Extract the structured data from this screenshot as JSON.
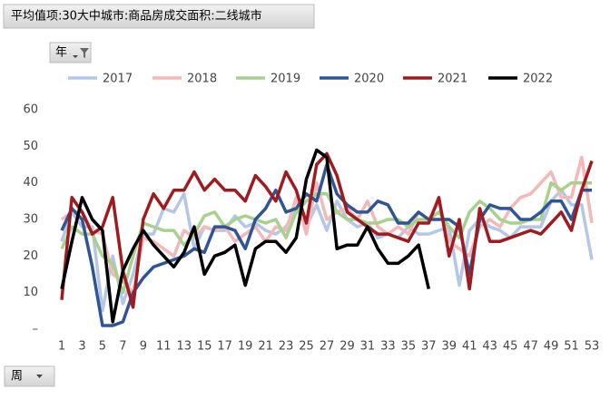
{
  "chart_data": {
    "type": "line",
    "title": "平均值项:30大中城市:商品房成交面积:二线城市",
    "filters": [
      "年",
      "周"
    ],
    "categories": [
      1,
      null,
      3,
      null,
      5,
      null,
      7,
      null,
      9,
      null,
      11,
      null,
      13,
      null,
      15,
      null,
      17,
      null,
      19,
      null,
      21,
      null,
      23,
      null,
      25,
      null,
      27,
      null,
      29,
      null,
      31,
      null,
      33,
      null,
      35,
      null,
      37,
      null,
      39,
      null,
      41,
      null,
      43,
      null,
      45,
      null,
      47,
      null,
      49,
      null,
      51,
      null,
      53
    ],
    "ylim": [
      0,
      60
    ],
    "yticks": [
      {
        "value": 0,
        "label": "–"
      },
      10,
      20,
      30,
      40,
      50,
      60
    ],
    "grid": false,
    "legend": "top",
    "series": [
      {
        "name": "2017",
        "color": "#b4c7e7",
        "values": [
          24,
          32,
          28,
          28,
          5,
          20,
          7,
          15,
          26,
          26,
          33,
          32,
          37,
          22,
          28,
          27,
          27,
          31,
          28,
          29,
          27,
          26,
          28,
          33,
          28,
          34,
          27,
          35,
          30,
          28,
          29,
          25,
          26,
          25,
          28,
          26,
          26,
          27,
          28,
          12,
          27,
          30,
          28,
          27,
          25,
          28,
          28,
          28,
          35,
          38,
          34,
          34,
          19
        ]
      },
      {
        "name": "2018",
        "color": "#f4b8b8",
        "values": [
          30,
          32,
          32,
          27,
          26,
          15,
          13,
          10,
          25,
          24,
          22,
          20,
          27,
          25,
          28,
          27,
          28,
          24,
          26,
          28,
          24,
          28,
          27,
          36,
          26,
          40,
          30,
          32,
          33,
          30,
          35,
          28,
          26,
          28,
          26,
          32,
          30,
          35,
          24,
          22,
          20,
          28,
          30,
          28,
          33,
          36,
          37,
          40,
          43,
          36,
          36,
          47,
          29
        ]
      },
      {
        "name": "2019",
        "color": "#a9d18e",
        "values": [
          22,
          28,
          26,
          26,
          20,
          18,
          10,
          20,
          29,
          28,
          27,
          27,
          23,
          26,
          31,
          32,
          28,
          30,
          31,
          30,
          29,
          30,
          25,
          32,
          35,
          37,
          37,
          32,
          30,
          30,
          29,
          29,
          30,
          30,
          28,
          30,
          30,
          32,
          28,
          25,
          32,
          35,
          33,
          30,
          29,
          29,
          30,
          30,
          40,
          38,
          40,
          40,
          40
        ]
      },
      {
        "name": "2020",
        "color": "#2f5597",
        "values": [
          27,
          33,
          30,
          17,
          1,
          1,
          2,
          10,
          14,
          17,
          18,
          19,
          20,
          22,
          21,
          28,
          28,
          27,
          22,
          30,
          33,
          38,
          32,
          33,
          37,
          35,
          45,
          37,
          34,
          32,
          32,
          35,
          34,
          29,
          29,
          32,
          30,
          30,
          30,
          28,
          15,
          30,
          34,
          33,
          33,
          30,
          30,
          32,
          35,
          35,
          30,
          38,
          38
        ]
      },
      {
        "name": "2021",
        "color": "#9e1b20",
        "values": [
          8,
          36,
          32,
          26,
          28,
          36,
          16,
          6,
          30,
          37,
          33,
          38,
          38,
          43,
          38,
          41,
          38,
          38,
          35,
          42,
          39,
          35,
          43,
          38,
          29,
          45,
          48,
          42,
          32,
          30,
          28,
          26,
          26,
          25,
          24,
          29,
          29,
          36,
          20,
          30,
          11,
          33,
          24,
          24,
          25,
          26,
          27,
          26,
          29,
          32,
          27,
          38,
          46
        ]
      },
      {
        "name": "2022",
        "color": "#000000",
        "values": [
          11,
          24,
          36,
          30,
          27,
          2,
          16,
          22,
          27,
          23,
          20,
          17,
          21,
          28,
          15,
          20,
          21,
          23,
          12,
          22,
          24,
          24,
          21,
          25,
          41,
          49,
          47,
          22,
          23,
          23,
          28,
          22,
          18,
          18,
          20,
          23,
          11,
          null,
          null,
          null,
          null,
          null,
          null,
          null,
          null,
          null,
          null,
          null,
          null,
          null,
          null,
          null,
          null
        ]
      }
    ]
  }
}
